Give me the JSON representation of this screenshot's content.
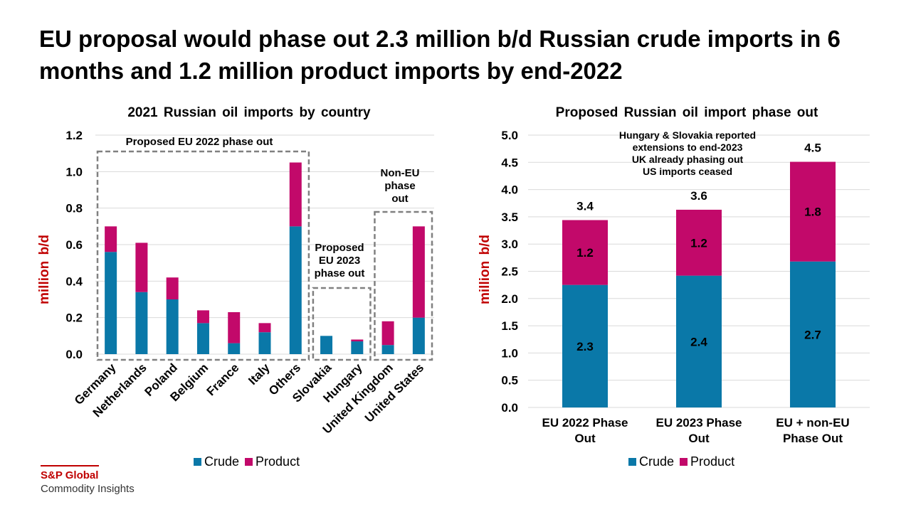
{
  "title": "EU proposal would phase out 2.3 million b/d Russian crude imports in 6 months and 1.2 million product imports by end-2022",
  "colors": {
    "crude": "#0a78a8",
    "product": "#c2096a",
    "ylabel": "#c00000",
    "grid": "#d9d9d9",
    "box": "#808080"
  },
  "legend": {
    "crude": "Crude",
    "product": "Product"
  },
  "logo": {
    "brand": "S&P Global",
    "sub": "Commodity Insights"
  },
  "chart_data": [
    {
      "type": "bar",
      "stacked": true,
      "title": "2021 Russian oil imports by country",
      "ylabel": "million b/d",
      "ylim": [
        0,
        1.2
      ],
      "yticks": [
        "0.0",
        "0.2",
        "0.4",
        "0.6",
        "0.8",
        "1.0",
        "1.2"
      ],
      "grid": true,
      "legend": "bottom",
      "categories": [
        "Germany",
        "Netherlands",
        "Poland",
        "Belgium",
        "France",
        "Italy",
        "Others",
        "Slovakia",
        "Hungary",
        "United Kingdom",
        "United States"
      ],
      "series": [
        {
          "name": "Crude",
          "values": [
            0.56,
            0.34,
            0.3,
            0.17,
            0.06,
            0.12,
            0.7,
            0.1,
            0.07,
            0.05,
            0.2
          ]
        },
        {
          "name": "Product",
          "values": [
            0.14,
            0.27,
            0.12,
            0.07,
            0.17,
            0.05,
            0.35,
            0.0,
            0.01,
            0.13,
            0.5
          ]
        }
      ],
      "annotations": [
        {
          "text": "Proposed EU 2022 phase out",
          "from": 0,
          "to": 6
        },
        {
          "text": "Proposed EU 2023 phase out",
          "from": 7,
          "to": 8
        },
        {
          "text": "Non-EU phase out",
          "from": 9,
          "to": 10
        }
      ]
    },
    {
      "type": "bar",
      "stacked": true,
      "title": "Proposed Russian oil import phase out",
      "ylabel": "million b/d",
      "ylim": [
        0,
        5.0
      ],
      "yticks": [
        "0.0",
        "0.5",
        "1.0",
        "1.5",
        "2.0",
        "2.5",
        "3.0",
        "3.5",
        "4.0",
        "4.5",
        "5.0"
      ],
      "grid": true,
      "legend": "bottom",
      "categories": [
        "EU 2022 Phase Out",
        "EU 2023 Phase Out",
        "EU + non-EU Phase Out"
      ],
      "series": [
        {
          "name": "Crude",
          "values": [
            2.25,
            2.42,
            2.68
          ],
          "labels": [
            "2.3",
            "2.4",
            "2.7"
          ]
        },
        {
          "name": "Product",
          "values": [
            1.19,
            1.21,
            1.83
          ],
          "labels": [
            "1.2",
            "1.2",
            "1.8"
          ]
        }
      ],
      "totals": [
        "3.4",
        "3.6",
        "4.5"
      ],
      "annotation": "Hungary & Slovakia reported extensions to end-2023 UK already phasing out US imports ceased",
      "annotation_lines": [
        "Hungary & Slovakia reported",
        "extensions to end-2023",
        "UK already phasing out",
        "US imports ceased"
      ]
    }
  ]
}
